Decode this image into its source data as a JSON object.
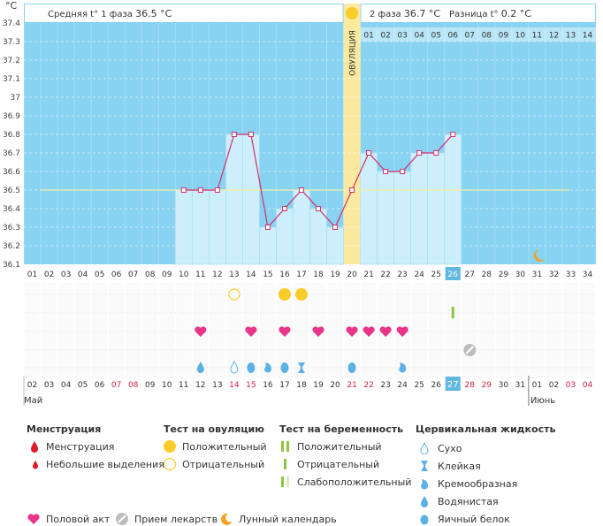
{
  "header": {
    "unit": "°C",
    "phase1_label": "Средняя t° 1 фаза",
    "phase1_value": "36.5 °C",
    "phase2_label": "2 фаза",
    "phase2_value": "36.7 °C",
    "diff_label": "Разница t°",
    "diff_value": "0.2 °C",
    "ovulation_label": "ОВУЛЯЦИЯ"
  },
  "chart_data": {
    "type": "line",
    "title": "",
    "ylabel": "°C",
    "ylim": [
      36.1,
      37.4
    ],
    "yticks": [
      "36.1",
      "36.2",
      "36.3",
      "36.4",
      "36.5",
      "36.6",
      "36.7",
      "36.8",
      "36.9",
      "37",
      "37.1",
      "37.2",
      "37.3",
      "37.4"
    ],
    "cycle_days": [
      "01",
      "02",
      "03",
      "04",
      "05",
      "06",
      "07",
      "08",
      "09",
      "10",
      "11",
      "12",
      "13",
      "14",
      "15",
      "16",
      "17",
      "18",
      "19",
      "20",
      "21",
      "22",
      "23",
      "24",
      "25",
      "26",
      "27",
      "28",
      "29",
      "30",
      "31",
      "32",
      "33",
      "34"
    ],
    "current_cycle_day": "26",
    "ovulation_day": 20,
    "coverline": 36.5,
    "phase2_days": [
      "01",
      "02",
      "03",
      "04",
      "05",
      "06",
      "07",
      "08",
      "09",
      "10",
      "11",
      "12",
      "13",
      "14"
    ],
    "series": [
      {
        "name": "Базальная температура",
        "days": [
          10,
          11,
          12,
          13,
          14,
          15,
          16,
          17,
          18,
          19,
          20,
          21,
          22,
          23,
          24,
          25,
          26
        ],
        "values": [
          36.5,
          36.5,
          36.5,
          36.8,
          36.8,
          36.3,
          36.4,
          36.5,
          36.4,
          36.3,
          36.5,
          36.7,
          36.6,
          36.6,
          36.7,
          36.7,
          36.8
        ]
      }
    ],
    "moon_day": 31,
    "calendar_dates": [
      "02",
      "03",
      "04",
      "05",
      "06",
      "07",
      "08",
      "09",
      "10",
      "11",
      "12",
      "13",
      "14",
      "15",
      "16",
      "17",
      "18",
      "19",
      "20",
      "21",
      "22",
      "23",
      "24",
      "25",
      "26",
      "27",
      "28",
      "29",
      "30",
      "31",
      "01",
      "02",
      "03",
      "04"
    ],
    "weekend_indices": [
      5,
      6,
      12,
      13,
      19,
      20,
      26,
      27,
      32,
      33
    ],
    "today_index": 25,
    "month1": "Май",
    "month2": "Июнь",
    "events": {
      "ovulation_test_negative": [
        13
      ],
      "ovulation_test_positive": [
        16,
        17
      ],
      "pregnancy_test_faint": [
        26
      ],
      "intercourse": [
        11,
        14,
        16,
        18,
        20,
        21,
        22,
        23
      ],
      "medicine": [
        27
      ],
      "cervical_fluid": [
        {
          "day": 11,
          "type": "watery"
        },
        {
          "day": 13,
          "type": "dry"
        },
        {
          "day": 14,
          "type": "eggwhite"
        },
        {
          "day": 15,
          "type": "creamy"
        },
        {
          "day": 16,
          "type": "eggwhite"
        },
        {
          "day": 17,
          "type": "sticky"
        },
        {
          "day": 20,
          "type": "eggwhite"
        },
        {
          "day": 23,
          "type": "creamy"
        }
      ]
    }
  },
  "legend": {
    "menstruation": {
      "title": "Менструация",
      "items": [
        "Менструация",
        "Небольшие выделения"
      ]
    },
    "ovulation_test": {
      "title": "Тест на овуляцию",
      "items": [
        "Положительный",
        "Отрицательный"
      ]
    },
    "pregnancy_test": {
      "title": "Тест на беременность",
      "items": [
        "Положительный",
        "Отрицательный",
        "Слабоположительный"
      ]
    },
    "cervical": {
      "title": "Цервикальная жидкость",
      "items": [
        "Сухо",
        "Клейкая",
        "Кремообразная",
        "Водянистая",
        "Яичный белок"
      ]
    },
    "bottom": [
      "Половой акт",
      "Прием лекарств",
      "Лунный календарь"
    ]
  },
  "colors": {
    "sky": "#87d3f1",
    "bar": "#cdeefb",
    "line": "#d32f6b",
    "ovulation": "#fbe9a0",
    "sun": "#f9cc2c",
    "heart": "#e8358a",
    "drop": "#5bb0e6",
    "red": "#e1192b",
    "green": "#8cc63f",
    "weekend": "#d21f3c",
    "today": "#5fb8e0"
  }
}
